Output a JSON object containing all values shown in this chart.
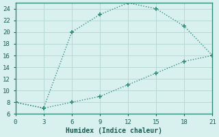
{
  "title": "",
  "xlabel": "Humidex (Indice chaleur)",
  "line1_x": [
    0,
    3,
    6,
    9,
    12,
    15,
    18,
    21
  ],
  "line1_y": [
    8,
    7,
    20,
    23,
    25,
    24,
    21,
    16
  ],
  "line2_x": [
    0,
    3,
    6,
    9,
    12,
    15,
    18,
    21
  ],
  "line2_y": [
    8,
    7,
    8,
    9,
    11,
    13,
    15,
    16
  ],
  "line_color": "#2e8b7a",
  "bg_color": "#d8f0ee",
  "grid_color": "#b8d8d4",
  "text_color": "#1a5a50",
  "spine_color": "#2e8b7a",
  "xlim": [
    0,
    21
  ],
  "ylim": [
    6,
    25
  ],
  "xticks": [
    0,
    3,
    6,
    9,
    12,
    15,
    18,
    21
  ],
  "yticks": [
    6,
    8,
    10,
    12,
    14,
    16,
    18,
    20,
    22,
    24
  ]
}
